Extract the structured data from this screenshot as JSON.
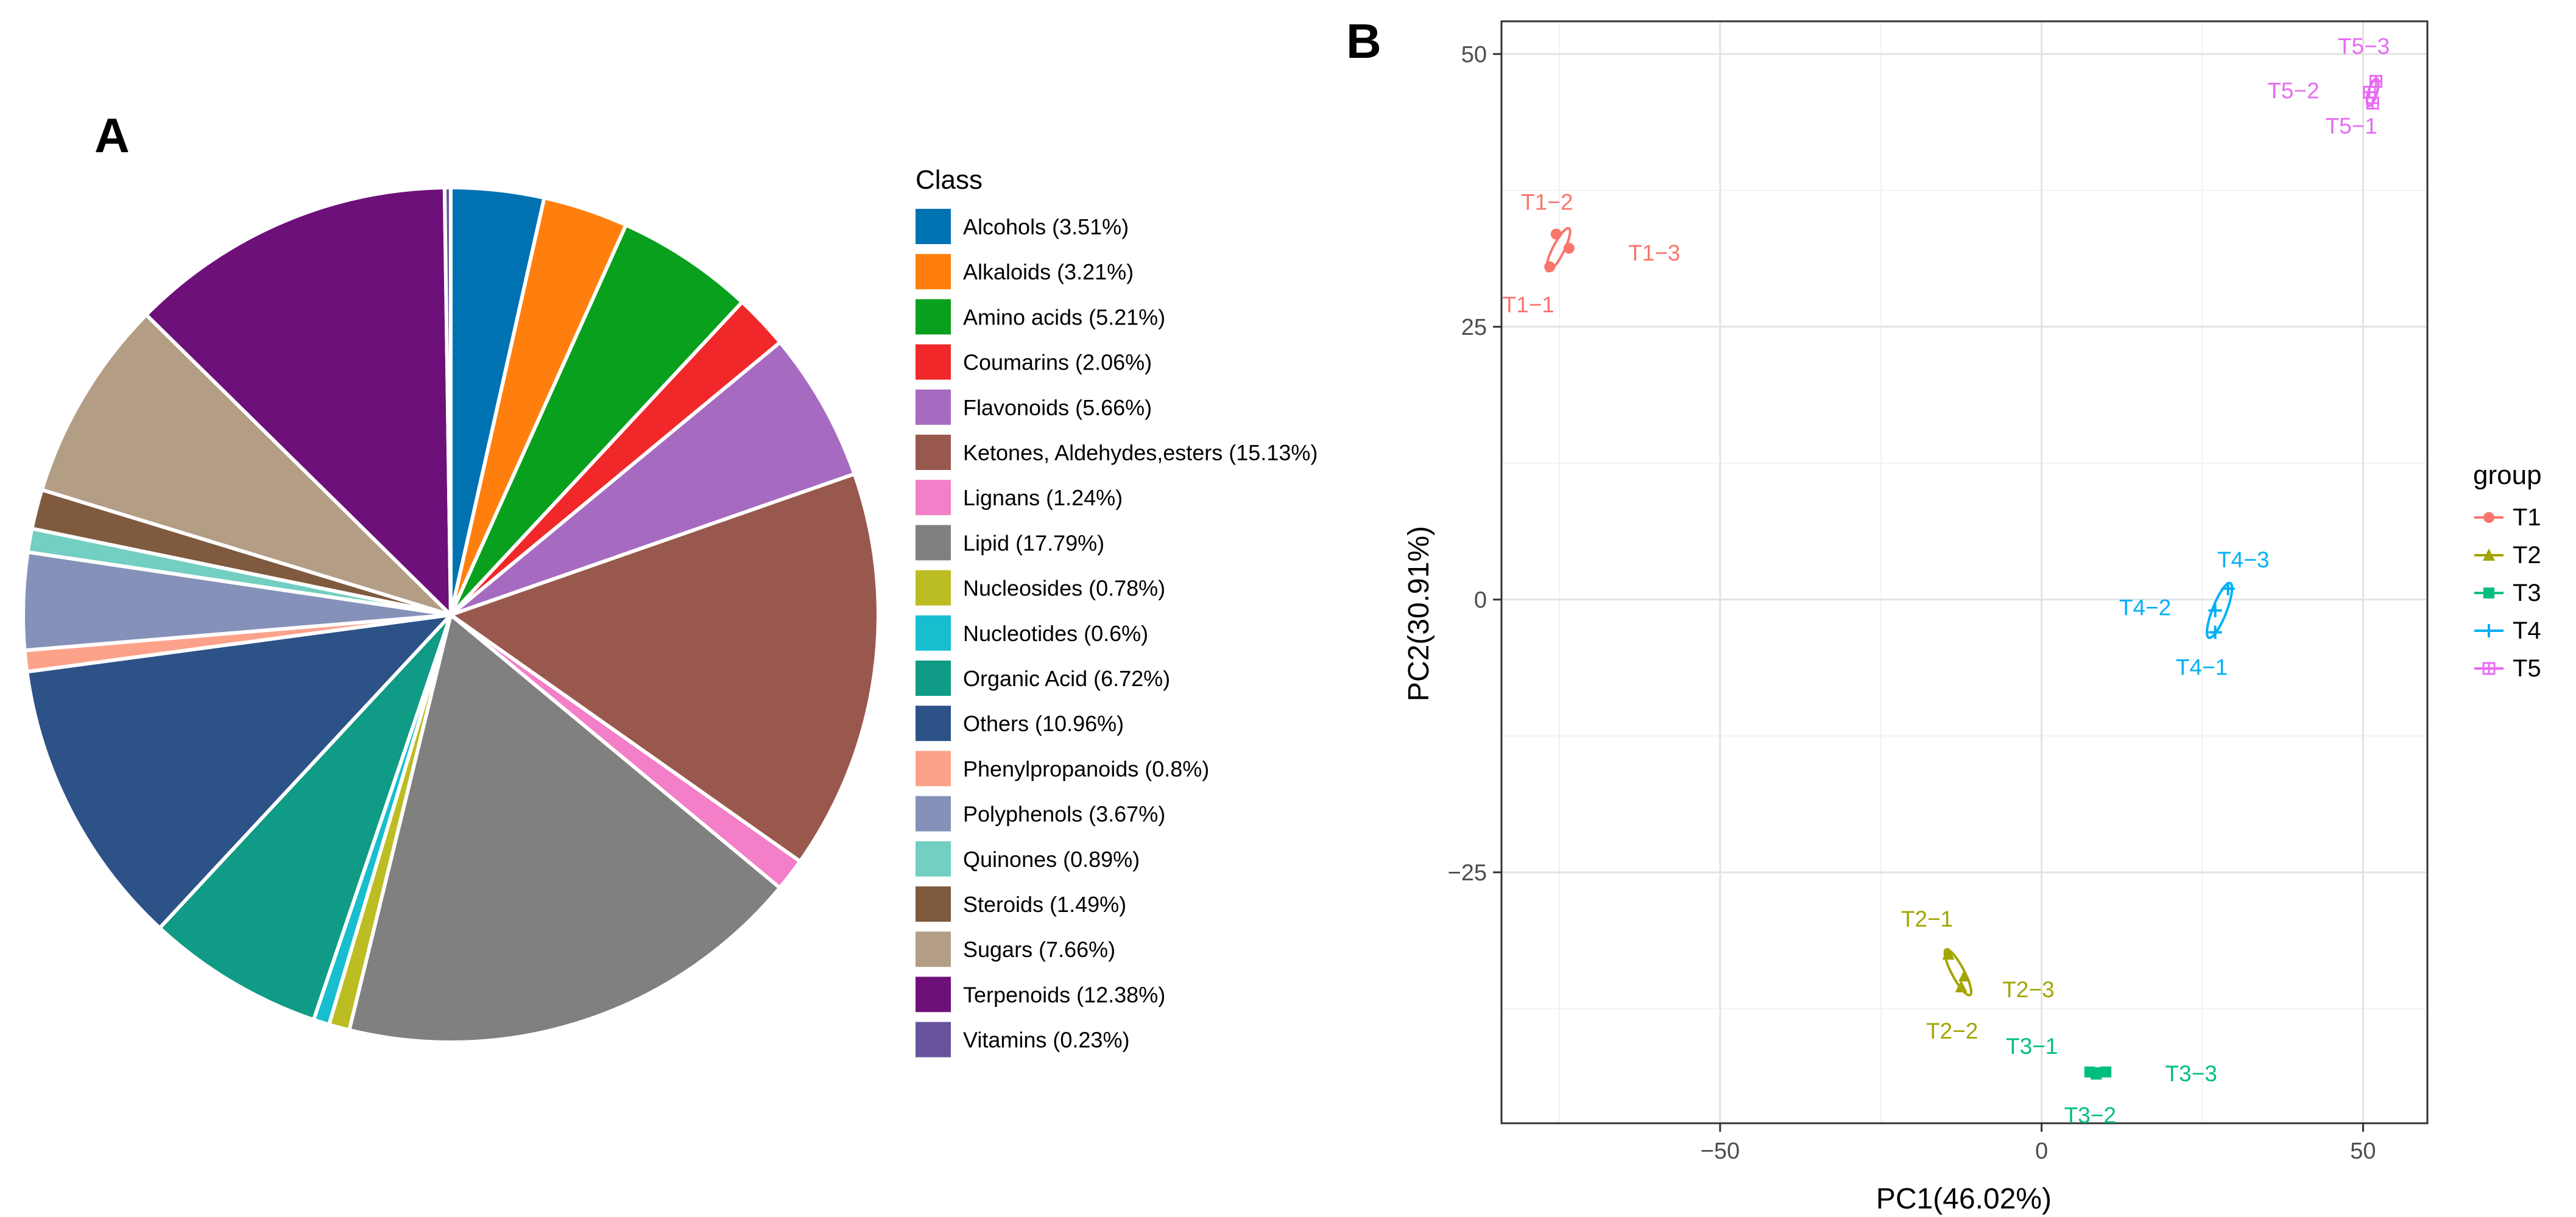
{
  "panels": {
    "a_letter": "A",
    "b_letter": "B"
  },
  "chart_data": [
    {
      "type": "pie",
      "legend_title": "Class",
      "legend_position": "right",
      "slices": [
        {
          "label": "Alcohols (3.51%)",
          "value": 3.51,
          "color": "#0072b2"
        },
        {
          "label": "Alkaloids (3.21%)",
          "value": 3.21,
          "color": "#ff7f0e"
        },
        {
          "label": "Amino acids (5.21%)",
          "value": 5.21,
          "color": "#09a01e"
        },
        {
          "label": "Coumarins (2.06%)",
          "value": 2.06,
          "color": "#f0282a"
        },
        {
          "label": "Flavonoids (5.66%)",
          "value": 5.66,
          "color": "#a66bc1"
        },
        {
          "label": "Ketones, Aldehydes,esters (15.13%)",
          "value": 15.13,
          "color": "#99584d"
        },
        {
          "label": "Lignans (1.24%)",
          "value": 1.24,
          "color": "#f27fc8"
        },
        {
          "label": "Lipid (17.79%)",
          "value": 17.79,
          "color": "#808080"
        },
        {
          "label": "Nucleosides (0.78%)",
          "value": 0.78,
          "color": "#bcbd22"
        },
        {
          "label": "Nucleotides (0.6%)",
          "value": 0.6,
          "color": "#17becf"
        },
        {
          "label": "Organic Acid (6.72%)",
          "value": 6.72,
          "color": "#0f9b85"
        },
        {
          "label": "Others (10.96%)",
          "value": 10.96,
          "color": "#2c5288"
        },
        {
          "label": "Phenylpropanoids (0.8%)",
          "value": 0.8,
          "color": "#fca28a"
        },
        {
          "label": "Polyphenols (3.67%)",
          "value": 3.67,
          "color": "#8591b8"
        },
        {
          "label": "Quinones (0.89%)",
          "value": 0.89,
          "color": "#72cfc2"
        },
        {
          "label": "Steroids (1.49%)",
          "value": 1.49,
          "color": "#7f5a3e"
        },
        {
          "label": "Sugars (7.66%)",
          "value": 7.66,
          "color": "#b39d85"
        },
        {
          "label": "Terpenoids (12.38%)",
          "value": 12.38,
          "color": "#6d1079"
        },
        {
          "label": "Vitamins (0.23%)",
          "value": 0.23,
          "color": "#68549e"
        }
      ]
    },
    {
      "type": "scatter",
      "title": "",
      "xlabel": "PC1(46.02%)",
      "ylabel": "PC2(30.91%)",
      "xlim": [
        -84,
        60
      ],
      "ylim": [
        -48,
        53
      ],
      "xticks": [
        -50,
        0,
        50
      ],
      "yticks": [
        -25,
        0,
        25,
        50
      ],
      "grid": true,
      "legend_title": "group",
      "legend_position": "right",
      "series": [
        {
          "name": "T1",
          "color": "#f8766d",
          "marker": "circle",
          "points": [
            {
              "label": "T1-1",
              "x": -76.5,
              "y": 30.5
            },
            {
              "label": "T1-2",
              "x": -75.5,
              "y": 33.5
            },
            {
              "label": "T1-3",
              "x": -73.5,
              "y": 32.2
            }
          ]
        },
        {
          "name": "T2",
          "color": "#a3a500",
          "marker": "triangle",
          "points": [
            {
              "label": "T2-1",
              "x": -14.5,
              "y": -32.5
            },
            {
              "label": "T2-2",
              "x": -12.5,
              "y": -35.5
            },
            {
              "label": "T2-3",
              "x": -12,
              "y": -34.5
            }
          ]
        },
        {
          "name": "T3",
          "color": "#00bf7d",
          "marker": "square",
          "points": [
            {
              "label": "T3-1",
              "x": 7.5,
              "y": -43.3
            },
            {
              "label": "T3-2",
              "x": 8.5,
              "y": -43.5
            },
            {
              "label": "T3-3",
              "x": 10,
              "y": -43.3
            }
          ]
        },
        {
          "name": "T4",
          "color": "#00b0f6",
          "marker": "cross",
          "points": [
            {
              "label": "T4-1",
              "x": 27,
              "y": -3
            },
            {
              "label": "T4-2",
              "x": 27,
              "y": -1
            },
            {
              "label": "T4-3",
              "x": 29,
              "y": 1
            }
          ]
        },
        {
          "name": "T5",
          "color": "#e76bf3",
          "marker": "square-cross",
          "points": [
            {
              "label": "T5-1",
              "x": 51.5,
              "y": 45.5
            },
            {
              "label": "T5-2",
              "x": 51,
              "y": 46.5
            },
            {
              "label": "T5-3",
              "x": 52,
              "y": 47.5
            }
          ]
        }
      ]
    }
  ]
}
